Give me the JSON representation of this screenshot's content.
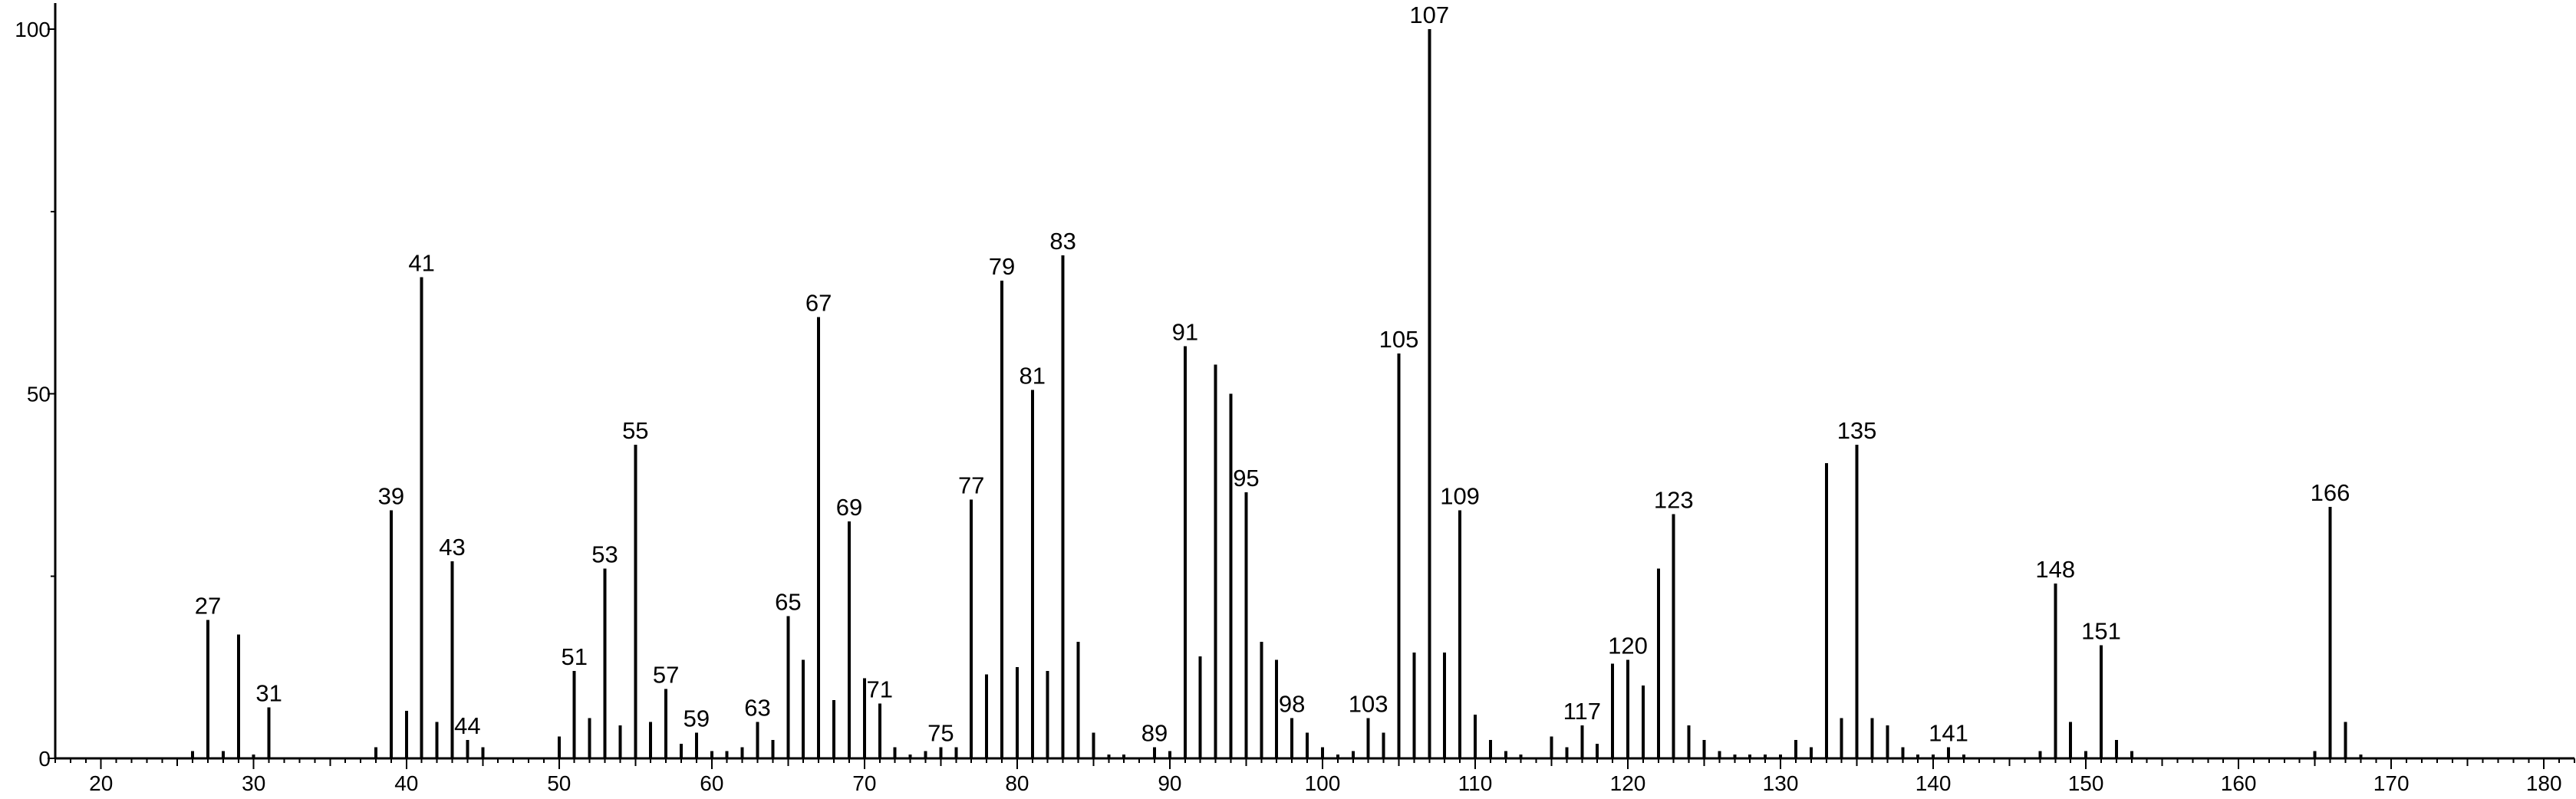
{
  "chart_data": {
    "type": "bar",
    "title": "",
    "xlabel": "",
    "ylabel": "",
    "xlim": [
      17,
      182
    ],
    "ylim": [
      0,
      100
    ],
    "x_ticks": [
      20,
      30,
      40,
      50,
      60,
      70,
      80,
      90,
      100,
      110,
      120,
      130,
      140,
      150,
      160,
      170,
      180
    ],
    "y_ticks": [
      0,
      50,
      100
    ],
    "grid": false,
    "legend": "none",
    "bar_color": "#000000",
    "peaks": [
      {
        "x": 26,
        "y": 1
      },
      {
        "x": 27,
        "y": 19,
        "label": "27"
      },
      {
        "x": 28,
        "y": 1
      },
      {
        "x": 29,
        "y": 17
      },
      {
        "x": 30,
        "y": 0.5
      },
      {
        "x": 31,
        "y": 7,
        "label": "31"
      },
      {
        "x": 38,
        "y": 1.5
      },
      {
        "x": 39,
        "y": 34,
        "label": "39"
      },
      {
        "x": 40,
        "y": 6.5
      },
      {
        "x": 41,
        "y": 66,
        "label": "41"
      },
      {
        "x": 42,
        "y": 5
      },
      {
        "x": 43,
        "y": 27,
        "label": "43"
      },
      {
        "x": 44,
        "y": 2.5,
        "label": "44"
      },
      {
        "x": 45,
        "y": 1.5
      },
      {
        "x": 50,
        "y": 3
      },
      {
        "x": 51,
        "y": 12,
        "label": "51"
      },
      {
        "x": 52,
        "y": 5.5
      },
      {
        "x": 53,
        "y": 26,
        "label": "53"
      },
      {
        "x": 54,
        "y": 4.5
      },
      {
        "x": 55,
        "y": 43,
        "label": "55"
      },
      {
        "x": 56,
        "y": 5
      },
      {
        "x": 57,
        "y": 9.5,
        "label": "57"
      },
      {
        "x": 58,
        "y": 2
      },
      {
        "x": 59,
        "y": 3.5,
        "label": "59"
      },
      {
        "x": 60,
        "y": 1
      },
      {
        "x": 61,
        "y": 1
      },
      {
        "x": 62,
        "y": 1.5
      },
      {
        "x": 63,
        "y": 5,
        "label": "63"
      },
      {
        "x": 64,
        "y": 2.5
      },
      {
        "x": 65,
        "y": 19.5,
        "label": "65"
      },
      {
        "x": 66,
        "y": 13.5
      },
      {
        "x": 67,
        "y": 60.5,
        "label": "67"
      },
      {
        "x": 68,
        "y": 8
      },
      {
        "x": 69,
        "y": 32.5,
        "label": "69"
      },
      {
        "x": 70,
        "y": 11
      },
      {
        "x": 71,
        "y": 7.5,
        "label": "71"
      },
      {
        "x": 72,
        "y": 1.5
      },
      {
        "x": 73,
        "y": 0.5
      },
      {
        "x": 74,
        "y": 1
      },
      {
        "x": 75,
        "y": 1.5,
        "label": "75"
      },
      {
        "x": 76,
        "y": 1.5
      },
      {
        "x": 77,
        "y": 35.5,
        "label": "77"
      },
      {
        "x": 78,
        "y": 11.5
      },
      {
        "x": 79,
        "y": 65.5,
        "label": "79"
      },
      {
        "x": 80,
        "y": 12.5
      },
      {
        "x": 81,
        "y": 50.5,
        "label": "81"
      },
      {
        "x": 82,
        "y": 12
      },
      {
        "x": 83,
        "y": 69,
        "label": "83"
      },
      {
        "x": 84,
        "y": 16
      },
      {
        "x": 85,
        "y": 3.5
      },
      {
        "x": 86,
        "y": 0.5
      },
      {
        "x": 87,
        "y": 0.5
      },
      {
        "x": 89,
        "y": 1.5,
        "label": "89"
      },
      {
        "x": 90,
        "y": 1
      },
      {
        "x": 91,
        "y": 56.5,
        "label": "91"
      },
      {
        "x": 92,
        "y": 14
      },
      {
        "x": 93,
        "y": 54
      },
      {
        "x": 94,
        "y": 50
      },
      {
        "x": 95,
        "y": 36.5,
        "label": "95"
      },
      {
        "x": 96,
        "y": 16
      },
      {
        "x": 97,
        "y": 13.5
      },
      {
        "x": 98,
        "y": 5.5,
        "label": "98"
      },
      {
        "x": 99,
        "y": 3.5
      },
      {
        "x": 100,
        "y": 1.5
      },
      {
        "x": 101,
        "y": 0.5
      },
      {
        "x": 102,
        "y": 1
      },
      {
        "x": 103,
        "y": 5.5,
        "label": "103"
      },
      {
        "x": 104,
        "y": 3.5
      },
      {
        "x": 105,
        "y": 55.5,
        "label": "105"
      },
      {
        "x": 106,
        "y": 14.5
      },
      {
        "x": 107,
        "y": 100,
        "label": "107"
      },
      {
        "x": 108,
        "y": 14.5
      },
      {
        "x": 109,
        "y": 34,
        "label": "109"
      },
      {
        "x": 110,
        "y": 6
      },
      {
        "x": 111,
        "y": 2.5
      },
      {
        "x": 112,
        "y": 1
      },
      {
        "x": 113,
        "y": 0.5
      },
      {
        "x": 115,
        "y": 3
      },
      {
        "x": 116,
        "y": 1.5
      },
      {
        "x": 117,
        "y": 4.5,
        "label": "117"
      },
      {
        "x": 118,
        "y": 2
      },
      {
        "x": 119,
        "y": 13
      },
      {
        "x": 120,
        "y": 13.5,
        "label": "120"
      },
      {
        "x": 121,
        "y": 10
      },
      {
        "x": 122,
        "y": 26
      },
      {
        "x": 123,
        "y": 33.5,
        "label": "123"
      },
      {
        "x": 124,
        "y": 4.5
      },
      {
        "x": 125,
        "y": 2.5
      },
      {
        "x": 126,
        "y": 1
      },
      {
        "x": 127,
        "y": 0.5
      },
      {
        "x": 128,
        "y": 0.5
      },
      {
        "x": 129,
        "y": 0.5
      },
      {
        "x": 130,
        "y": 0.5
      },
      {
        "x": 131,
        "y": 2.5
      },
      {
        "x": 132,
        "y": 1.5
      },
      {
        "x": 133,
        "y": 40.5
      },
      {
        "x": 134,
        "y": 5.5
      },
      {
        "x": 135,
        "y": 43,
        "label": "135"
      },
      {
        "x": 136,
        "y": 5.5
      },
      {
        "x": 137,
        "y": 4.5
      },
      {
        "x": 138,
        "y": 1.5
      },
      {
        "x": 139,
        "y": 0.5
      },
      {
        "x": 140,
        "y": 0.5
      },
      {
        "x": 141,
        "y": 1.5,
        "label": "141"
      },
      {
        "x": 142,
        "y": 0.5
      },
      {
        "x": 147,
        "y": 1
      },
      {
        "x": 148,
        "y": 24,
        "label": "148"
      },
      {
        "x": 149,
        "y": 5
      },
      {
        "x": 150,
        "y": 1
      },
      {
        "x": 151,
        "y": 15.5,
        "label": "151"
      },
      {
        "x": 152,
        "y": 2.5
      },
      {
        "x": 153,
        "y": 1
      },
      {
        "x": 165,
        "y": 1
      },
      {
        "x": 166,
        "y": 34.5,
        "label": "166"
      },
      {
        "x": 167,
        "y": 5
      },
      {
        "x": 168,
        "y": 0.5
      }
    ]
  }
}
